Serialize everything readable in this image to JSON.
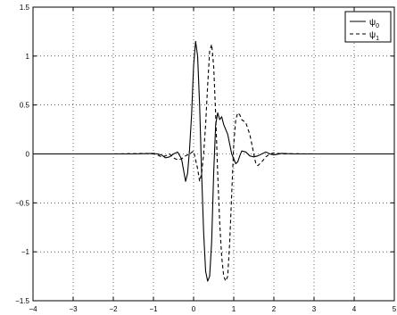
{
  "chart_data": {
    "type": "line",
    "title": "",
    "xlabel": "",
    "ylabel": "",
    "xlim": [
      -4,
      5
    ],
    "ylim": [
      -1.5,
      1.5
    ],
    "grid": true,
    "legend_position": "top-right",
    "x_ticks": [
      -4,
      -3,
      -2,
      -1,
      0,
      1,
      2,
      3,
      4,
      5
    ],
    "x_tick_labels": [
      "−4",
      "−3",
      "−2",
      "−1",
      "0",
      "1",
      "2",
      "3",
      "4",
      "5"
    ],
    "y_ticks": [
      -1.5,
      -1,
      -0.5,
      0,
      0.5,
      1,
      1.5
    ],
    "y_tick_labels": [
      "−1.5",
      "−1",
      "−0.5",
      "0",
      "0.5",
      "1",
      "1.5"
    ],
    "series": [
      {
        "name": "ψ",
        "subscript": "0",
        "style": "solid",
        "color": "#000000",
        "points": [
          [
            -4,
            0
          ],
          [
            -1.5,
            0
          ],
          [
            -1.2,
            0.003
          ],
          [
            -1.0,
            0.005
          ],
          [
            -0.9,
            0.0
          ],
          [
            -0.8,
            -0.01
          ],
          [
            -0.7,
            -0.04
          ],
          [
            -0.6,
            -0.03
          ],
          [
            -0.5,
            0.0
          ],
          [
            -0.4,
            0.02
          ],
          [
            -0.3,
            -0.05
          ],
          [
            -0.2,
            -0.28
          ],
          [
            -0.15,
            -0.2
          ],
          [
            -0.1,
            0.05
          ],
          [
            -0.05,
            0.4
          ],
          [
            0.0,
            0.9
          ],
          [
            0.05,
            1.15
          ],
          [
            0.1,
            1.0
          ],
          [
            0.15,
            0.5
          ],
          [
            0.2,
            -0.2
          ],
          [
            0.25,
            -0.8
          ],
          [
            0.3,
            -1.2
          ],
          [
            0.35,
            -1.3
          ],
          [
            0.4,
            -1.25
          ],
          [
            0.45,
            -0.9
          ],
          [
            0.5,
            -0.2
          ],
          [
            0.55,
            0.3
          ],
          [
            0.6,
            0.42
          ],
          [
            0.65,
            0.35
          ],
          [
            0.7,
            0.38
          ],
          [
            0.75,
            0.3
          ],
          [
            0.8,
            0.25
          ],
          [
            0.85,
            0.2
          ],
          [
            0.9,
            0.1
          ],
          [
            0.95,
            0.0
          ],
          [
            1.0,
            -0.05
          ],
          [
            1.05,
            -0.1
          ],
          [
            1.1,
            -0.08
          ],
          [
            1.15,
            -0.02
          ],
          [
            1.2,
            0.03
          ],
          [
            1.3,
            0.02
          ],
          [
            1.4,
            -0.02
          ],
          [
            1.5,
            -0.03
          ],
          [
            1.6,
            -0.02
          ],
          [
            1.7,
            0.0
          ],
          [
            1.8,
            0.02
          ],
          [
            1.9,
            0.0
          ],
          [
            2.0,
            -0.01
          ],
          [
            2.2,
            0.005
          ],
          [
            2.5,
            0
          ],
          [
            5,
            0
          ]
        ]
      },
      {
        "name": "ψ",
        "subscript": "1",
        "style": "dashed",
        "color": "#000000",
        "points": [
          [
            -4,
            0
          ],
          [
            -2.0,
            0
          ],
          [
            -1.5,
            0.003
          ],
          [
            -1.2,
            0.005
          ],
          [
            -1.0,
            0.0
          ],
          [
            -0.9,
            -0.01
          ],
          [
            -0.8,
            -0.03
          ],
          [
            -0.7,
            -0.02
          ],
          [
            -0.6,
            0.0
          ],
          [
            -0.5,
            -0.04
          ],
          [
            -0.4,
            -0.06
          ],
          [
            -0.3,
            -0.05
          ],
          [
            -0.2,
            -0.02
          ],
          [
            -0.1,
            0.0
          ],
          [
            0.0,
            0.03
          ],
          [
            0.1,
            -0.15
          ],
          [
            0.15,
            -0.28
          ],
          [
            0.2,
            -0.2
          ],
          [
            0.25,
            0.0
          ],
          [
            0.3,
            0.3
          ],
          [
            0.35,
            0.7
          ],
          [
            0.4,
            1.05
          ],
          [
            0.45,
            1.12
          ],
          [
            0.5,
            0.9
          ],
          [
            0.55,
            0.4
          ],
          [
            0.6,
            -0.2
          ],
          [
            0.65,
            -0.7
          ],
          [
            0.7,
            -1.05
          ],
          [
            0.75,
            -1.25
          ],
          [
            0.8,
            -1.3
          ],
          [
            0.85,
            -1.25
          ],
          [
            0.9,
            -0.9
          ],
          [
            0.95,
            -0.4
          ],
          [
            1.0,
            0.1
          ],
          [
            1.05,
            0.35
          ],
          [
            1.1,
            0.42
          ],
          [
            1.15,
            0.4
          ],
          [
            1.2,
            0.35
          ],
          [
            1.3,
            0.32
          ],
          [
            1.4,
            0.2
          ],
          [
            1.5,
            0.0
          ],
          [
            1.55,
            -0.1
          ],
          [
            1.6,
            -0.12
          ],
          [
            1.7,
            -0.08
          ],
          [
            1.8,
            -0.03
          ],
          [
            1.9,
            0.0
          ],
          [
            2.0,
            0.01
          ],
          [
            2.2,
            0.0
          ],
          [
            2.5,
            0.002
          ],
          [
            3.0,
            0
          ],
          [
            5,
            0
          ]
        ]
      }
    ]
  }
}
